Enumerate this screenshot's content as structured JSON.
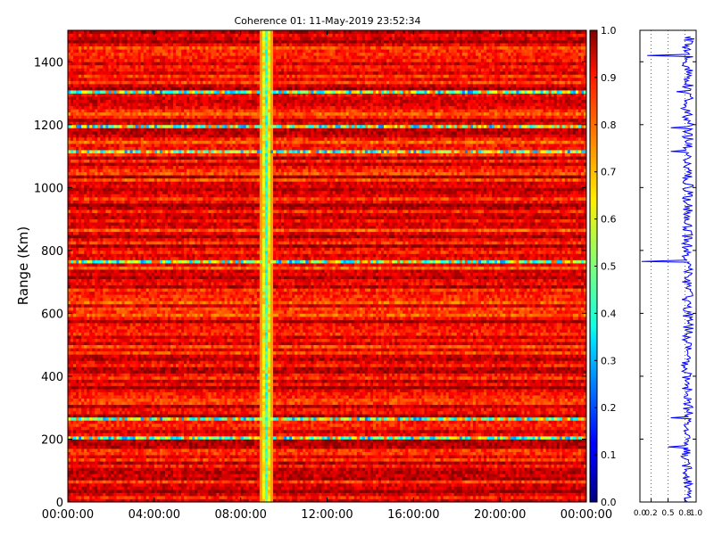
{
  "chart_data": [
    {
      "type": "heatmap",
      "title": "Coherence 01: 11-May-2019 23:52:34",
      "xlabel": "",
      "ylabel": "Range (Km)",
      "xlim": [
        "00:00:00",
        "24:00:00"
      ],
      "ylim": [
        0,
        1500
      ],
      "x_ticks": [
        "00:00:00",
        "04:00:00",
        "08:00:00",
        "12:00:00",
        "16:00:00",
        "20:00:00",
        "00:00:00"
      ],
      "y_ticks": [
        "0",
        "200",
        "400",
        "600",
        "800",
        "1000",
        "1200",
        "1400"
      ],
      "colormap": "jet",
      "zlim": [
        0.0,
        1.0
      ],
      "colorbar_ticks": [
        "0.0",
        "0.1",
        "0.2",
        "0.3",
        "0.4",
        "0.5",
        "0.6",
        "0.7",
        "0.8",
        "0.9",
        "1.0"
      ],
      "features": {
        "low_coherence_time_band": {
          "time": "09:10:00",
          "value": 0.35
        },
        "low_coherence_range_bands_km": [
          1115,
          1190,
          1305,
          765,
          268,
          200
        ],
        "typical_value": 0.85
      }
    },
    {
      "type": "line",
      "title": "",
      "xlabel": "",
      "ylabel": "",
      "xlim": [
        0.0,
        1.0
      ],
      "ylim": [
        0,
        1500
      ],
      "x_ticks": [
        "0.0",
        "0.2",
        "0.5",
        "0.8",
        "1.0"
      ],
      "grid": "vertical dotted",
      "series": [
        {
          "range_km": [
            0,
            20,
            50,
            80,
            100,
            130,
            160,
            175,
            200,
            230,
            268,
            290,
            320,
            350,
            380,
            420,
            450,
            480,
            520,
            560,
            600,
            640,
            680,
            720,
            760,
            765,
            790,
            830,
            870,
            900,
            950,
            1000,
            1050,
            1080,
            1110,
            1115,
            1150,
            1190,
            1220,
            1260,
            1305,
            1340,
            1360,
            1380,
            1400,
            1420,
            1450,
            1480
          ],
          "values": [
            0.85,
            0.88,
            0.8,
            0.87,
            0.83,
            0.86,
            0.78,
            0.5,
            0.82,
            0.86,
            0.55,
            0.84,
            0.88,
            0.82,
            0.86,
            0.8,
            0.87,
            0.85,
            0.83,
            0.88,
            0.84,
            0.86,
            0.82,
            0.87,
            0.85,
            0.03,
            0.84,
            0.86,
            0.82,
            0.88,
            0.83,
            0.86,
            0.84,
            0.8,
            0.86,
            0.55,
            0.84,
            0.55,
            0.85,
            0.82,
            0.65,
            0.86,
            0.84,
            0.88,
            0.83,
            0.13,
            0.86,
            0.9
          ]
        }
      ]
    }
  ]
}
